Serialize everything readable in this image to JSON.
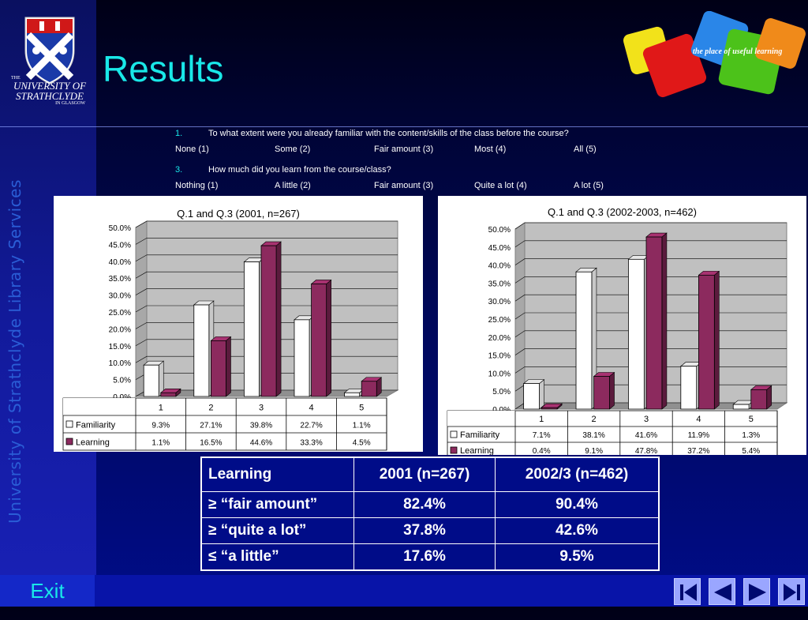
{
  "header": {
    "title": "Results",
    "university_name_line1": "THE",
    "university_name_line2": "UNIVERSITY OF",
    "university_name_line3": "STRATHCLYDE",
    "university_name_line4": "IN GLASGOW",
    "tagline": "the place of useful learning",
    "sidebar_text": "University of Strathclyde Library Services"
  },
  "questions": [
    {
      "number": "1.",
      "text": "To what extent were you already familiar with the content/skills of the class before the course?",
      "options": [
        "None (1)",
        "Some (2)",
        "Fair amount (3)",
        "Most (4)",
        "All (5)"
      ]
    },
    {
      "number": "3.",
      "text": "How much did you learn from the course/class?",
      "options": [
        "Nothing (1)",
        "A little (2)",
        "Fair amount (3)",
        "Quite a lot (4)",
        "A lot (5)"
      ]
    }
  ],
  "chart_data": [
    {
      "type": "bar",
      "title": "Q.1 and Q.3 (2001, n=267)",
      "categories": [
        "1",
        "2",
        "3",
        "4",
        "5"
      ],
      "series": [
        {
          "name": "Familiarity",
          "values": [
            9.3,
            27.1,
            39.8,
            22.7,
            1.1
          ],
          "labels": [
            "9.3%",
            "27.1%",
            "39.8%",
            "22.7%",
            "1.1%"
          ],
          "color": "#ffffff"
        },
        {
          "name": "Learning",
          "values": [
            1.1,
            16.5,
            44.6,
            33.3,
            4.5
          ],
          "labels": [
            "1.1%",
            "16.5%",
            "44.6%",
            "33.3%",
            "4.5%"
          ],
          "color": "#8c2a5e"
        }
      ],
      "ylim": [
        0,
        50
      ],
      "yticks": [
        "0.0%",
        "5.0%",
        "10.0%",
        "15.0%",
        "20.0%",
        "25.0%",
        "30.0%",
        "35.0%",
        "40.0%",
        "45.0%",
        "50.0%"
      ],
      "grid": true,
      "legend": "data-table-bottom"
    },
    {
      "type": "bar",
      "title": "Q.1 and Q.3 (2002-2003, n=462)",
      "categories": [
        "1",
        "2",
        "3",
        "4",
        "5"
      ],
      "series": [
        {
          "name": "Familiarity",
          "values": [
            7.1,
            38.1,
            41.6,
            11.9,
            1.3
          ],
          "labels": [
            "7.1%",
            "38.1%",
            "41.6%",
            "11.9%",
            "1.3%"
          ],
          "color": "#ffffff"
        },
        {
          "name": "Learning",
          "values": [
            0.4,
            9.1,
            47.8,
            37.2,
            5.4
          ],
          "labels": [
            "0.4%",
            "9.1%",
            "47.8%",
            "37.2%",
            "5.4%"
          ],
          "color": "#8c2a5e"
        }
      ],
      "ylim": [
        0,
        50
      ],
      "yticks": [
        "0.0%",
        "5.0%",
        "10.0%",
        "15.0%",
        "20.0%",
        "25.0%",
        "30.0%",
        "35.0%",
        "40.0%",
        "45.0%",
        "50.0%"
      ],
      "grid": true,
      "legend": "data-table-bottom"
    }
  ],
  "stats_table": {
    "headers": [
      "Learning",
      "2001 (n=267)",
      "2002/3 (n=462)"
    ],
    "rows": [
      [
        "≥ “fair amount”",
        "82.4%",
        "90.4%"
      ],
      [
        "≥ “quite a lot”",
        "37.8%",
        "42.6%"
      ],
      [
        "≤ “a little”",
        "17.6%",
        "9.5%"
      ]
    ]
  },
  "footer": {
    "exit_label": "Exit",
    "nav_buttons": [
      "first-slide-icon",
      "previous-slide-icon",
      "next-slide-icon",
      "last-slide-icon"
    ]
  },
  "colors": {
    "title": "#19e8e8",
    "familiarity": "#ffffff",
    "learning": "#8c2a5e",
    "chart_wall": "#c0c0c0"
  }
}
